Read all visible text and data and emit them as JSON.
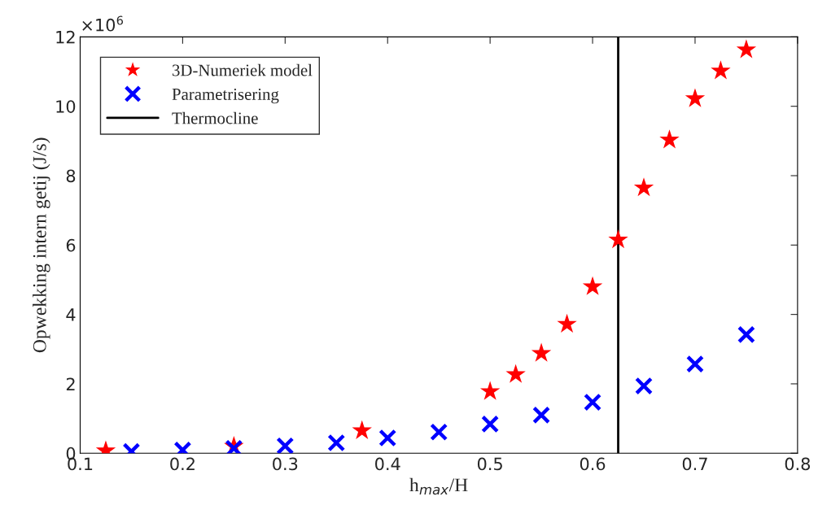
{
  "chart_data": {
    "type": "scatter",
    "xlabel": "h$_{max}$/H",
    "ylabel": "Opwekking intern getij (J/s)",
    "series": [
      {
        "name": "3D-Numeriek model",
        "color": "#ff0000",
        "marker": "star",
        "x": [
          0.125,
          0.25,
          0.375,
          0.5,
          0.525,
          0.55,
          0.575,
          0.6,
          0.625,
          0.65,
          0.675,
          0.7,
          0.725,
          0.75
        ],
        "values": [
          0.07,
          0.2,
          0.65,
          1.78,
          2.27,
          2.88,
          3.72,
          4.8,
          6.15,
          7.65,
          9.03,
          10.22,
          11.02,
          11.63
        ]
      },
      {
        "name": "Parametrisering",
        "color": "#0000ff",
        "marker": "cross",
        "x": [
          0.15,
          0.2,
          0.25,
          0.3,
          0.35,
          0.4,
          0.45,
          0.5,
          0.55,
          0.6,
          0.65,
          0.7,
          0.75
        ],
        "values": [
          0.05,
          0.09,
          0.14,
          0.21,
          0.3,
          0.44,
          0.61,
          0.84,
          1.1,
          1.47,
          1.94,
          2.57,
          3.42
        ]
      },
      {
        "name": "Thermocline",
        "type": "line",
        "color": "#000000",
        "marker": "none",
        "line_style": "solid",
        "x": [
          0.625,
          0.625
        ],
        "values": [
          0,
          12
        ]
      }
    ],
    "xlim": [
      0.1,
      0.8
    ],
    "xticks": [
      0.1,
      0.2,
      0.3,
      0.4,
      0.5,
      0.6,
      0.7,
      0.8
    ],
    "ylim": [
      0,
      12
    ],
    "yticks": [
      0,
      2,
      4,
      6,
      8,
      10,
      12
    ],
    "annotations": [
      "×10$^{6}$"
    ],
    "legend": "top left",
    "grid": false
  }
}
